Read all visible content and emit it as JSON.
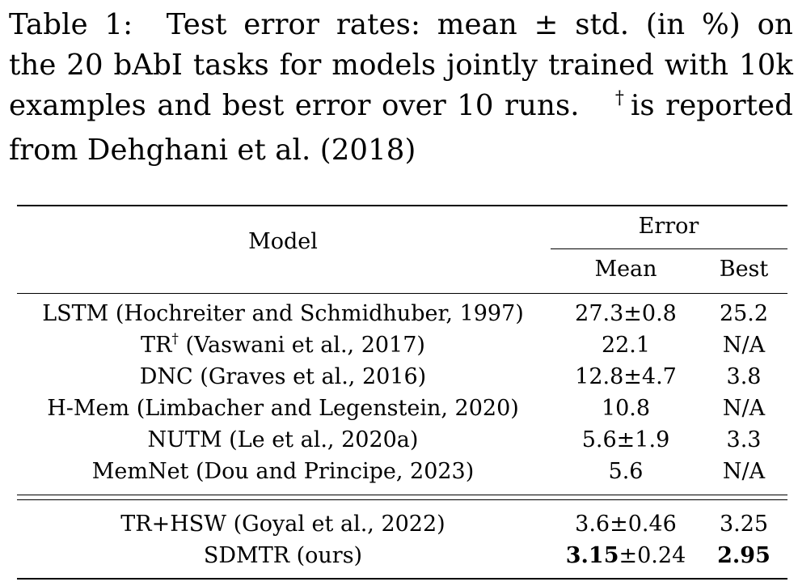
{
  "caption": {
    "label": "Table 1:",
    "lines": [
      "Test error rates: mean ± std. (in %) on",
      "the 20 bAbI tasks for models jointly trained with 10k",
      "examples and best error over 10 runs.",
      "is reported",
      "from Dehghani et al. (2018)"
    ],
    "dagger": "†"
  },
  "table": {
    "header": {
      "model": "Model",
      "error": "Error",
      "mean": "Mean",
      "best": "Best"
    },
    "group1": [
      {
        "model": "LSTM (Hochreiter and Schmidhuber, 1997)",
        "mean": "27.3±0.8",
        "best": "25.2"
      },
      {
        "model_pre": "TR",
        "model_sup": "†",
        "model_post": " (Vaswani et al., 2017)",
        "mean": "22.1",
        "best": "N/A"
      },
      {
        "model": "DNC (Graves et al., 2016)",
        "mean": "12.8±4.7",
        "best": "3.8"
      },
      {
        "model": "H-Mem (Limbacher and Legenstein, 2020)",
        "mean": "10.8",
        "best": "N/A"
      },
      {
        "model": "NUTM (Le et al., 2020a)",
        "mean": "5.6±1.9",
        "best": "3.3"
      },
      {
        "model": "MemNet (Dou and Principe, 2023)",
        "mean": "5.6",
        "best": "N/A"
      }
    ],
    "group2": [
      {
        "model": "TR+HSW (Goyal et al., 2022)",
        "mean": "3.6±0.46",
        "best": "3.25"
      },
      {
        "model": "SDMTR (ours)",
        "mean_bold": "3.15",
        "mean_rest": "±0.24",
        "best": "2.95"
      }
    ]
  }
}
